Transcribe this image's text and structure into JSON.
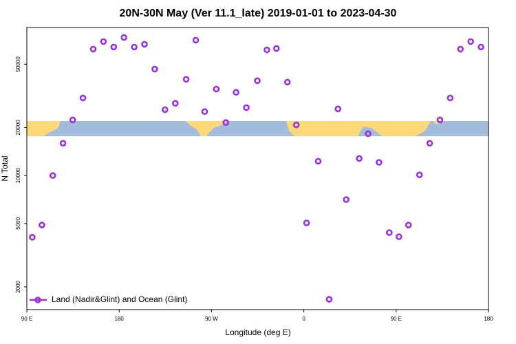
{
  "chart_data": {
    "type": "scatter",
    "title": "20N-30N May (Ver 11.1_late)   2019-01-01 to 2023-04-30",
    "x_label": "Longitude (deg E)",
    "y_label": "N Total",
    "log_y": true,
    "color": "#9b30e0",
    "series": [
      {
        "name": "Land (Nadir&Glint) and Ocean (Glint)",
        "color": "#9b30e0",
        "x": [
          95.3,
          104.7,
          115.3,
          125.3,
          134.7,
          144.7,
          154.7,
          164.7,
          174.7,
          184.7,
          194.7,
          204.7,
          214.7,
          224.7,
          234.7,
          245.3,
          254.7,
          263.3,
          274.7,
          284,
          294,
          304,
          314.7,
          324,
          333.3,
          344,
          352.7,
          362.7,
          374,
          384.7,
          393.3,
          401.3,
          414,
          422.7,
          433.3,
          443.3,
          452.7,
          462,
          472.7,
          482.7,
          492.7,
          502.7,
          512.7,
          522.7,
          532.7
        ],
        "values": [
          4100,
          4890,
          10000,
          15950,
          22350,
          30700,
          62200,
          69400,
          64100,
          73600,
          64100,
          66700,
          46600,
          25900,
          28400,
          40200,
          70800,
          25200,
          34900,
          21500,
          33300,
          26700,
          39400,
          61500,
          62800,
          38600,
          20800,
          5040,
          12300,
          1670,
          26200,
          7060,
          12800,
          18300,
          12100,
          4380,
          4130,
          4890,
          10100,
          15950,
          22350,
          30700,
          62200,
          69400,
          64100
        ]
      }
    ],
    "xlim": [
      90,
      540
    ],
    "xticks": [
      {
        "value": 90,
        "label": "90 E"
      },
      180,
      {
        "value": 270,
        "label": "90 W"
      },
      {
        "value": 360,
        "label": "0"
      },
      {
        "value": 450,
        "label": "90 E"
      },
      {
        "value": 540,
        "label": "180"
      }
    ],
    "ylim": [
      1440,
      85000
    ],
    "yticks": [
      2000,
      5000,
      10000,
      20000,
      50000
    ],
    "legend": "lower left"
  }
}
